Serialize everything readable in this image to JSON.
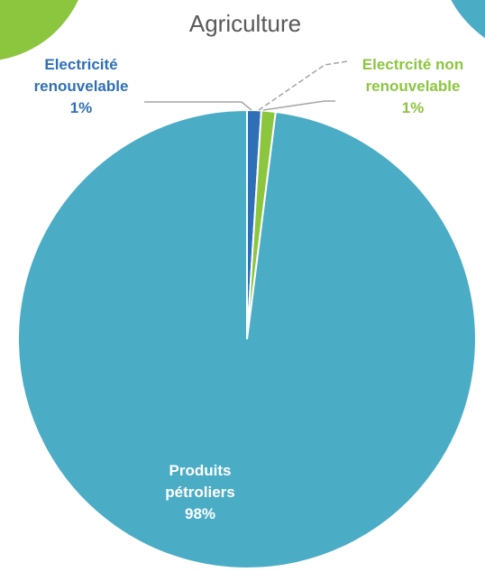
{
  "chart_data": {
    "type": "pie",
    "title": "Agriculture",
    "categories": [
      "Electricité renouvelable",
      "Electrcité non renouvelable",
      "Produits pétroliers"
    ],
    "values": [
      1,
      1,
      98
    ],
    "value_labels": [
      "1%",
      "1%",
      "98%"
    ],
    "colors": [
      "#2f6fb8",
      "#8cc63f",
      "#4bacc6"
    ]
  }
}
